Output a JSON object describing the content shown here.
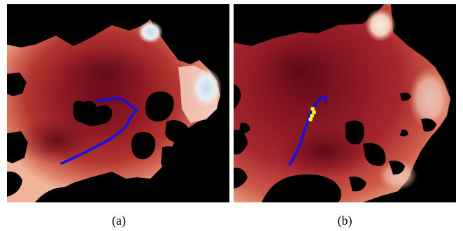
{
  "figure": {
    "panels": [
      {
        "id": "a",
        "caption": "(a)",
        "path_color": "#1010e6",
        "marker_color": null
      },
      {
        "id": "b",
        "caption": "(b)",
        "path_color": "#1010e6",
        "marker_color": "#ffff00"
      }
    ],
    "colors": {
      "obstacle": "#000000",
      "dark_red": "#6e0c1c",
      "mid_red": "#a8262e",
      "light_red": "#d9735e",
      "peach": "#f2b59a",
      "pale_blue": "#cfe3f0",
      "background": "#ffffff"
    }
  }
}
